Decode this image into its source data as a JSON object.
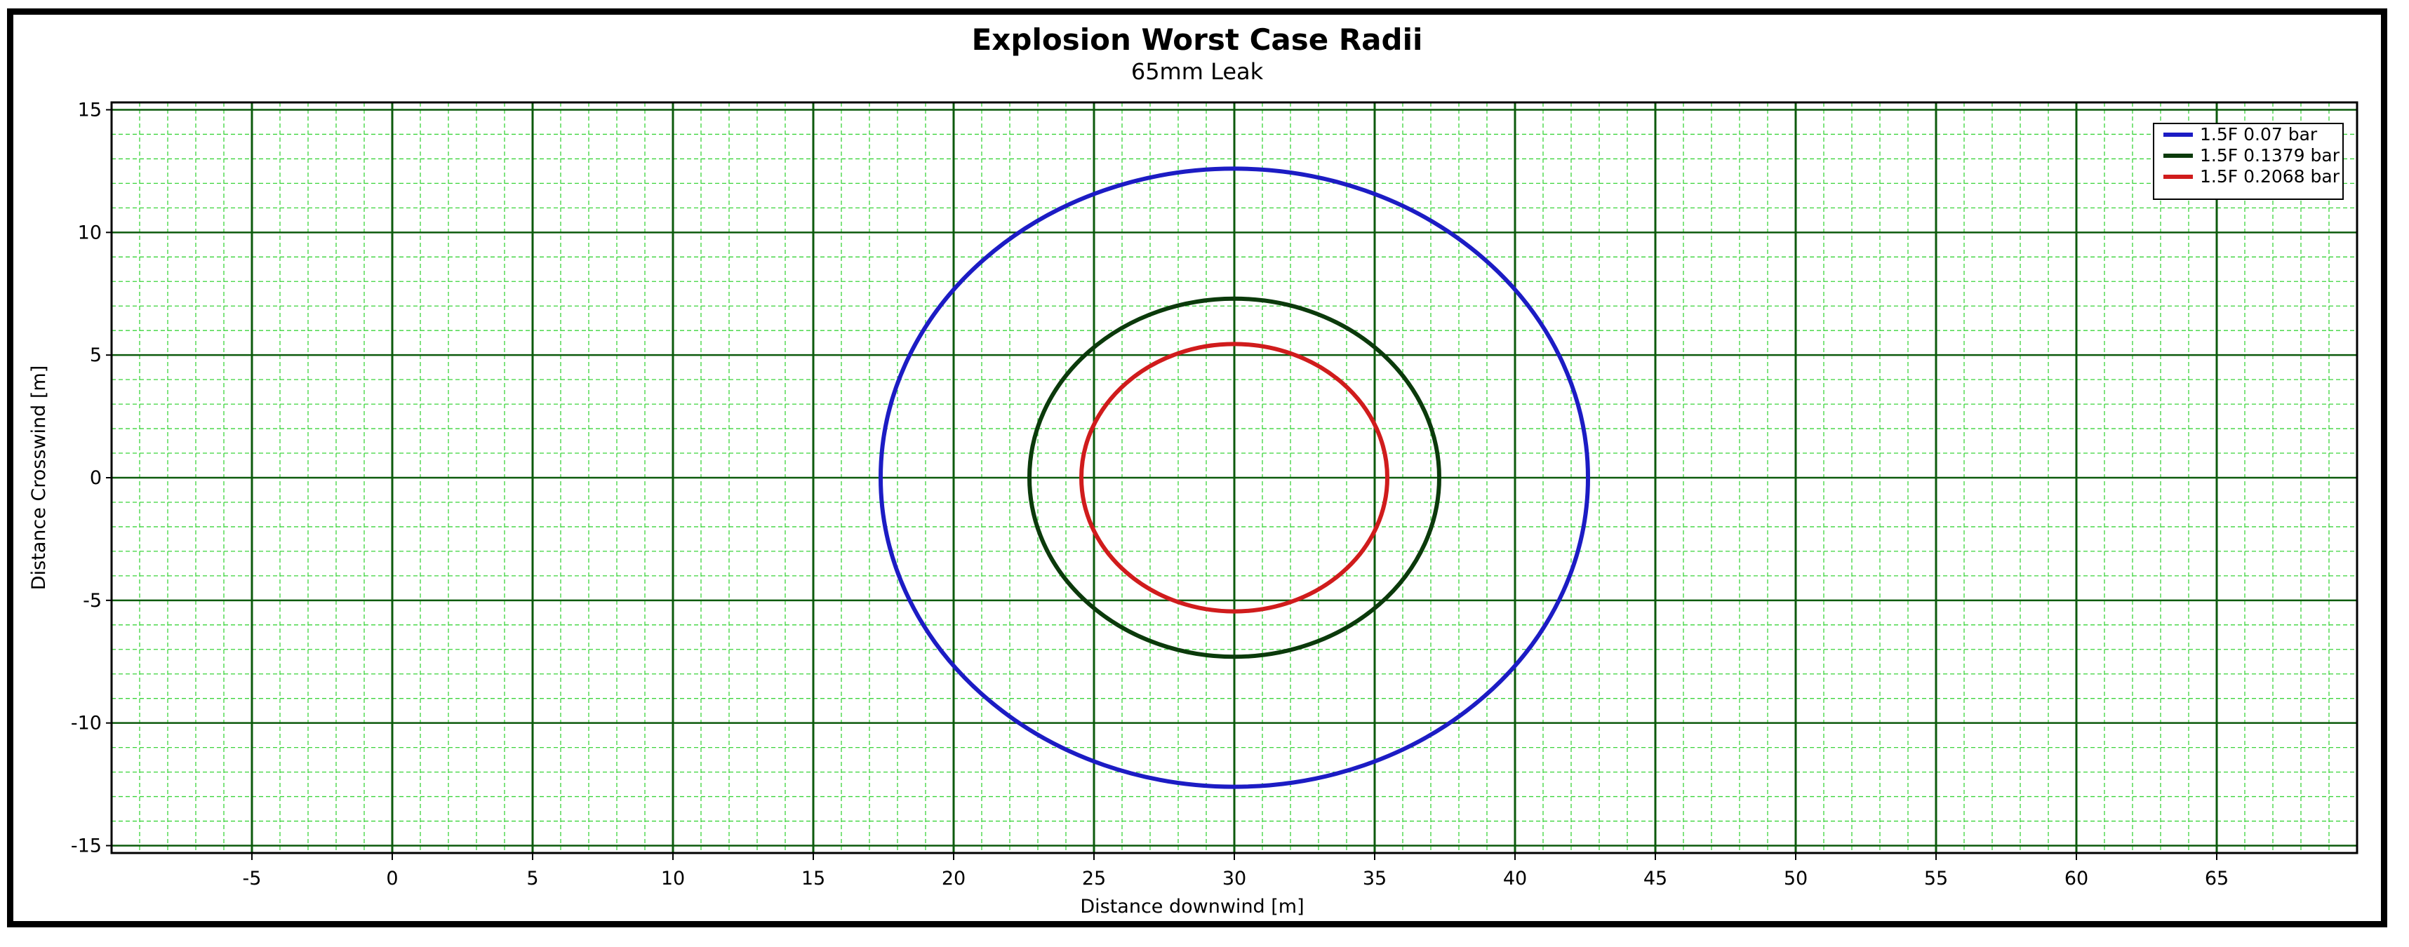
{
  "chart_data": {
    "type": "line",
    "title": "Explosion Worst Case Radii",
    "subtitle": "65mm Leak",
    "xlabel": "Distance downwind [m]",
    "ylabel": "Distance Crosswind [m]",
    "xlim": [
      -10,
      70
    ],
    "ylim": [
      -15.3,
      15.3
    ],
    "xticks": [
      -5,
      0,
      5,
      10,
      15,
      20,
      25,
      30,
      35,
      40,
      45,
      50,
      55,
      60,
      65
    ],
    "yticks": [
      15,
      10,
      5,
      0,
      -5,
      -10,
      -15
    ],
    "grid": true,
    "legend_position": "top-right",
    "series": [
      {
        "name": "1.5F 0.07 bar",
        "color": "#1c1cc4",
        "center": [
          30,
          0
        ],
        "x_radius": 12.6,
        "y_radius": 12.6
      },
      {
        "name": "1.5F 0.1379 bar",
        "color": "#0b3a0b",
        "center": [
          30,
          0
        ],
        "x_radius": 7.3,
        "y_radius": 7.3
      },
      {
        "name": "1.5F 0.2068 bar",
        "color": "#d01c1c",
        "center": [
          30,
          0
        ],
        "x_radius": 5.45,
        "y_radius": 5.45
      }
    ],
    "colors": {
      "major_grid": "#0c5a0c",
      "minor_grid": "#3bd43b",
      "axis": "#000000"
    }
  }
}
